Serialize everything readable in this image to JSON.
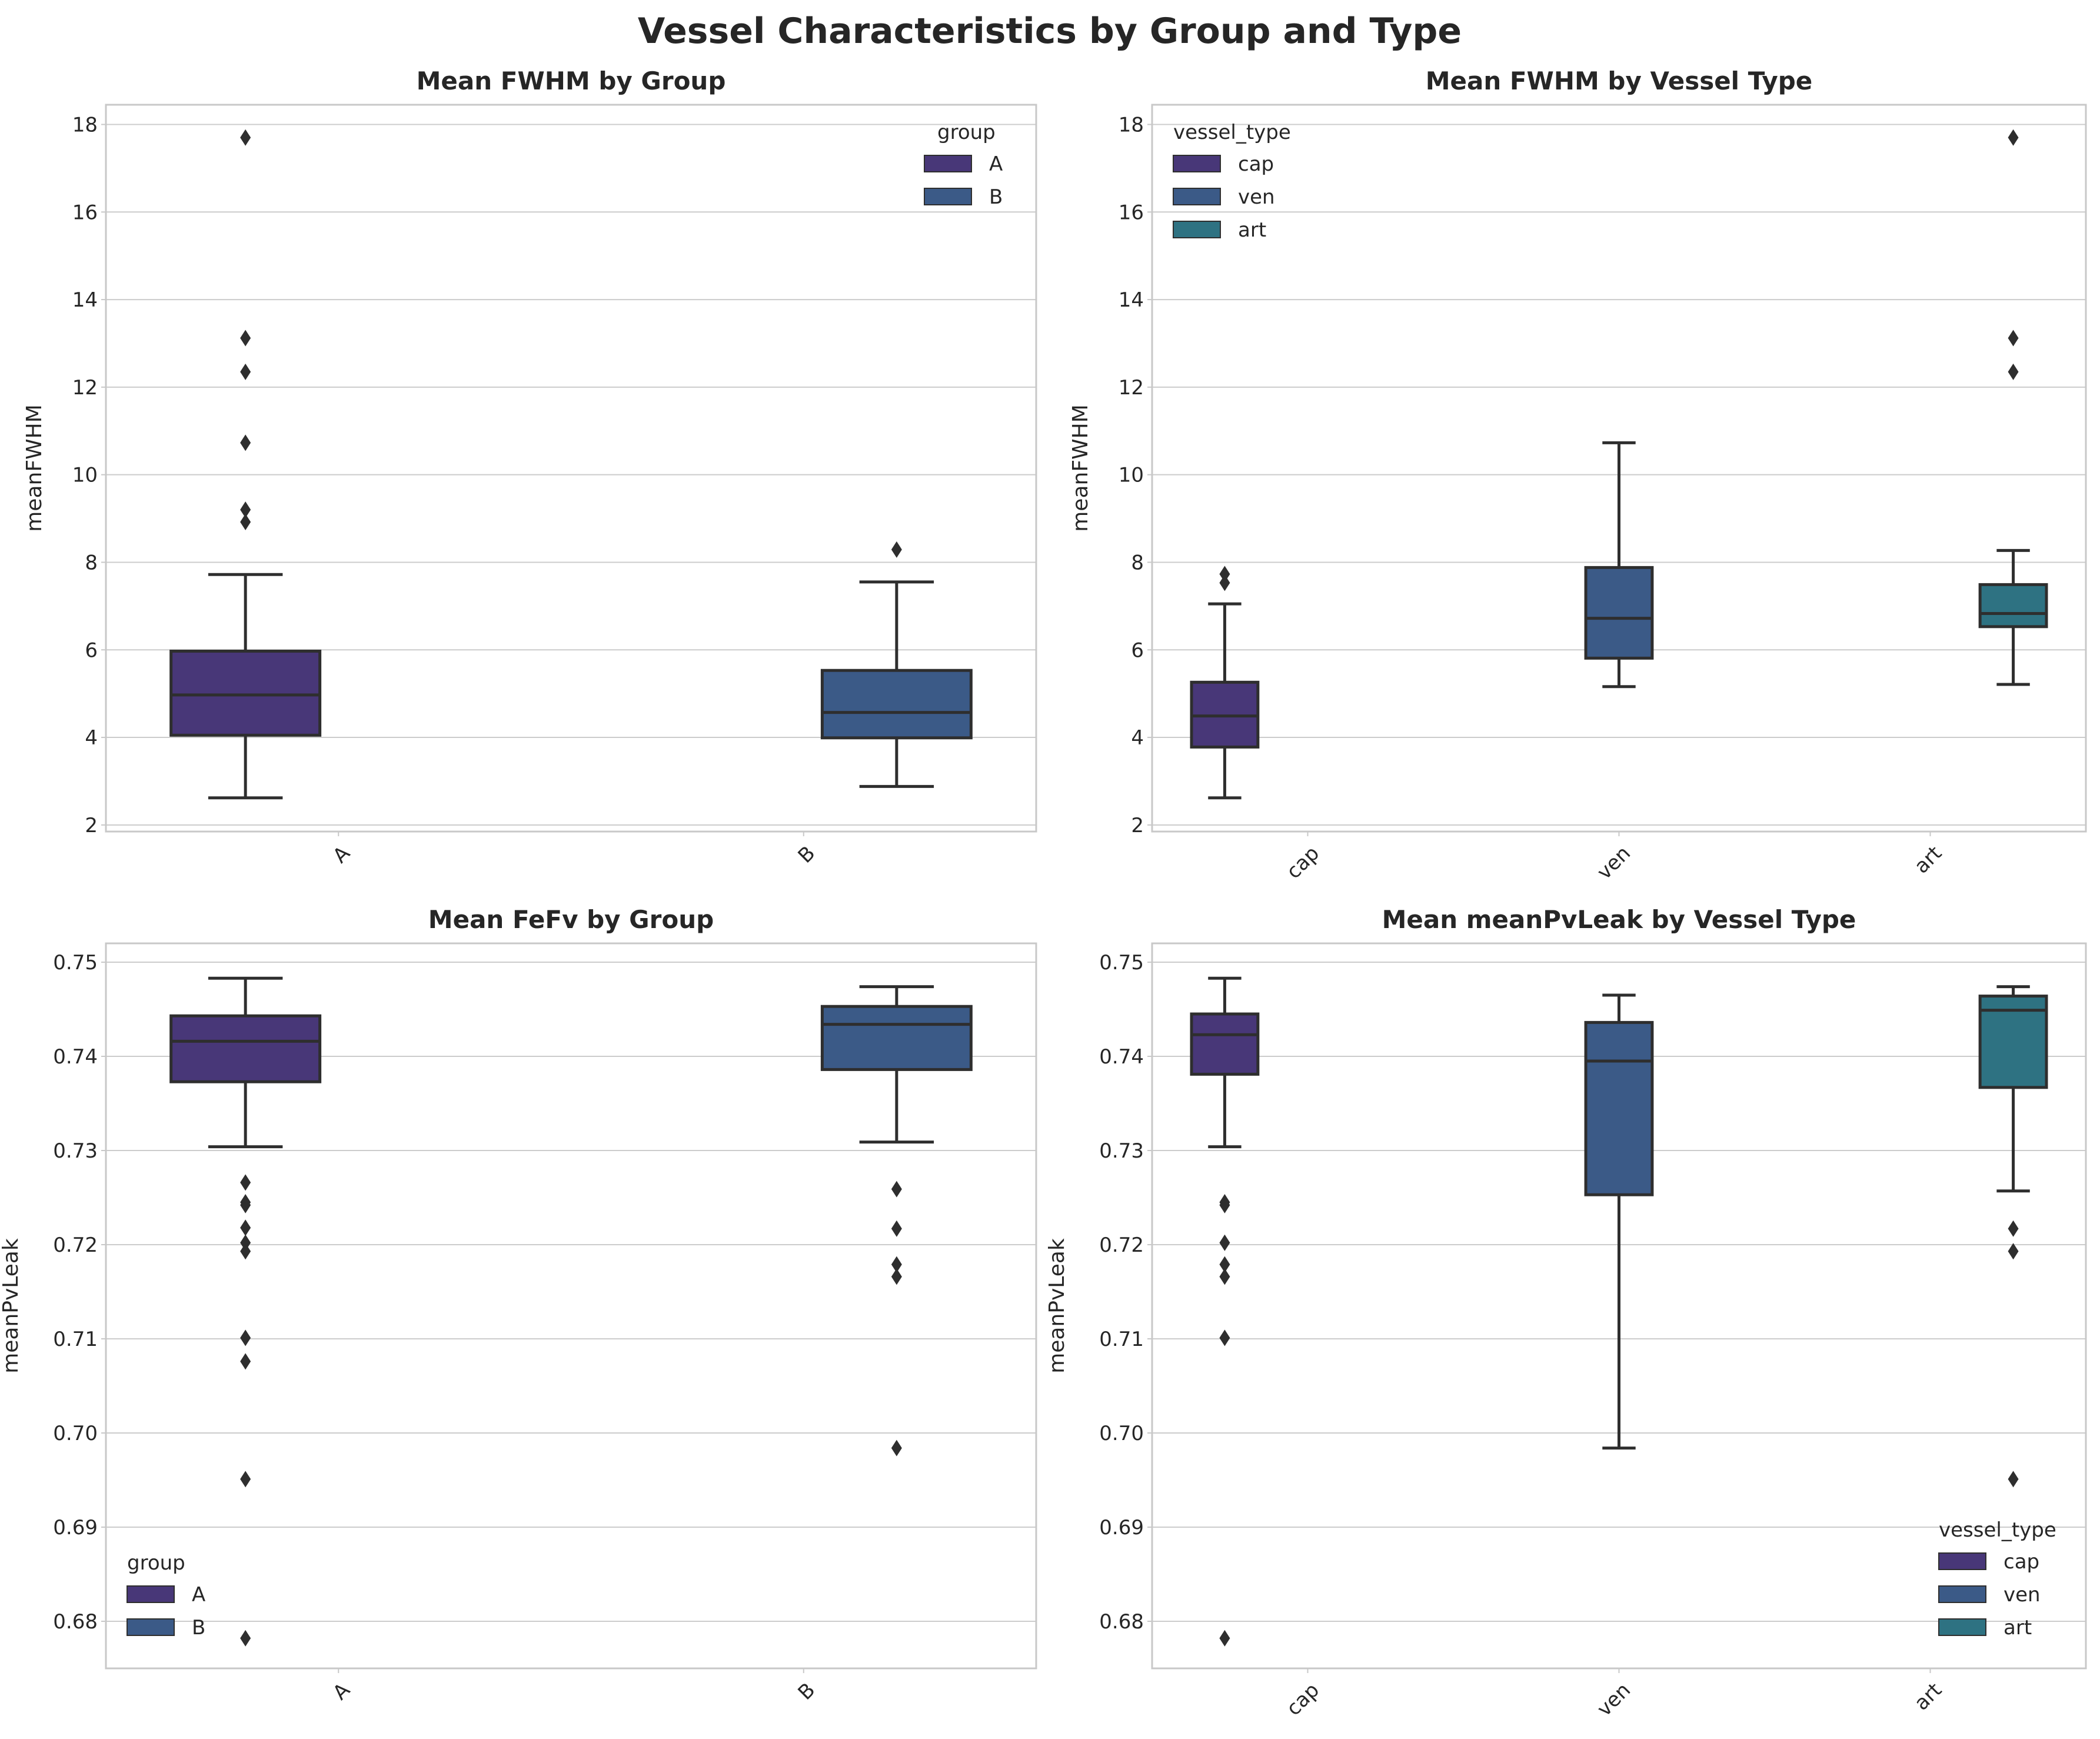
{
  "figure": {
    "title": "Vessel Characteristics by Group and Type"
  },
  "colors": {
    "A": "#483778",
    "B": "#3b5a87",
    "cap": "#483778",
    "ven": "#3b5a87",
    "art": "#2e7282",
    "line": "#2e2e2e",
    "grid": "#cccccc",
    "frame": "#c8c8c8"
  },
  "chart_data": [
    {
      "id": "p0",
      "type": "box",
      "title": "Mean FWHM by Group",
      "xlabel": "",
      "ylabel": "meanFWHM",
      "ylim": [
        1.85,
        18.45
      ],
      "yticks": [
        2,
        4,
        6,
        8,
        10,
        12,
        14,
        16,
        18
      ],
      "ytick_labels": [
        "2",
        "4",
        "6",
        "8",
        "10",
        "12",
        "14",
        "16",
        "18"
      ],
      "categories": [
        "A",
        "B"
      ],
      "grid": true,
      "legend": {
        "title": "group",
        "entries": [
          "A",
          "B"
        ],
        "placement": "upper-right"
      },
      "series": [
        {
          "name": "A",
          "category": "A",
          "slot": 0,
          "q1": 4.05,
          "median": 4.97,
          "q3": 5.97,
          "whisker_low": 2.62,
          "whisker_high": 7.72,
          "outliers": [
            17.7,
            13.12,
            12.35,
            10.73,
            9.2,
            8.92
          ]
        },
        {
          "name": "B",
          "category": "B",
          "slot": 1,
          "q1": 3.99,
          "median": 4.57,
          "q3": 5.53,
          "whisker_low": 2.88,
          "whisker_high": 7.55,
          "outliers": [
            8.29
          ]
        }
      ]
    },
    {
      "id": "p1",
      "type": "box",
      "title": "Mean FWHM by Vessel Type",
      "xlabel": "",
      "ylabel": "meanFWHM",
      "ylim": [
        1.85,
        18.45
      ],
      "yticks": [
        2,
        4,
        6,
        8,
        10,
        12,
        14,
        16,
        18
      ],
      "ytick_labels": [
        "2",
        "4",
        "6",
        "8",
        "10",
        "12",
        "14",
        "16",
        "18"
      ],
      "categories": [
        "cap",
        "ven",
        "art"
      ],
      "grid": true,
      "legend": {
        "title": "vessel_type",
        "entries": [
          "cap",
          "ven",
          "art"
        ],
        "placement": "upper-left"
      },
      "series": [
        {
          "name": "cap",
          "category": "cap",
          "slot": 0,
          "q1": 3.78,
          "median": 4.49,
          "q3": 5.26,
          "whisker_low": 2.62,
          "whisker_high": 7.05,
          "outliers": [
            7.73,
            7.53
          ]
        },
        {
          "name": "ven",
          "category": "ven",
          "slot": 1,
          "q1": 5.81,
          "median": 6.72,
          "q3": 7.88,
          "whisker_low": 5.16,
          "whisker_high": 10.73,
          "outliers": []
        },
        {
          "name": "art",
          "category": "art",
          "slot": 2,
          "q1": 6.53,
          "median": 6.83,
          "q3": 7.49,
          "whisker_low": 5.21,
          "whisker_high": 8.27,
          "outliers": [
            17.7,
            13.12,
            12.35
          ]
        }
      ]
    },
    {
      "id": "p2",
      "type": "box",
      "title": "Mean FeFv by Group",
      "xlabel": "",
      "ylabel": "meanPvLeak",
      "ylim": [
        0.675,
        0.752
      ],
      "yticks": [
        0.68,
        0.69,
        0.7,
        0.71,
        0.72,
        0.73,
        0.74,
        0.75
      ],
      "ytick_labels": [
        "0.68",
        "0.69",
        "0.70",
        "0.71",
        "0.72",
        "0.73",
        "0.74",
        "0.75"
      ],
      "categories": [
        "A",
        "B"
      ],
      "grid": true,
      "legend": {
        "title": "group",
        "entries": [
          "A",
          "B"
        ],
        "placement": "lower-left"
      },
      "series": [
        {
          "name": "A",
          "category": "A",
          "slot": 0,
          "q1": 0.7373,
          "median": 0.7416,
          "q3": 0.7443,
          "whisker_low": 0.7304,
          "whisker_high": 0.7483,
          "outliers": [
            0.7266,
            0.7245,
            0.7242,
            0.7218,
            0.7202,
            0.7193,
            0.7101,
            0.7076,
            0.6951,
            0.6782
          ]
        },
        {
          "name": "B",
          "category": "B",
          "slot": 1,
          "q1": 0.7386,
          "median": 0.7434,
          "q3": 0.7453,
          "whisker_low": 0.7309,
          "whisker_high": 0.7474,
          "outliers": [
            0.7259,
            0.7217,
            0.7179,
            0.7166,
            0.6984
          ]
        }
      ]
    },
    {
      "id": "p3",
      "type": "box",
      "title": "Mean meanPvLeak by Vessel Type",
      "xlabel": "",
      "ylabel": "meanPvLeak",
      "ylim": [
        0.675,
        0.752
      ],
      "yticks": [
        0.68,
        0.69,
        0.7,
        0.71,
        0.72,
        0.73,
        0.74,
        0.75
      ],
      "ytick_labels": [
        "0.68",
        "0.69",
        "0.70",
        "0.71",
        "0.72",
        "0.73",
        "0.74",
        "0.75"
      ],
      "categories": [
        "cap",
        "ven",
        "art"
      ],
      "grid": true,
      "legend": {
        "title": "vessel_type",
        "entries": [
          "cap",
          "ven",
          "art"
        ],
        "placement": "lower-right"
      },
      "series": [
        {
          "name": "cap",
          "category": "cap",
          "slot": 0,
          "q1": 0.7381,
          "median": 0.7423,
          "q3": 0.7445,
          "whisker_low": 0.7304,
          "whisker_high": 0.7483,
          "outliers": [
            0.7245,
            0.7242,
            0.7202,
            0.7179,
            0.7166,
            0.7101,
            0.6782
          ]
        },
        {
          "name": "ven",
          "category": "ven",
          "slot": 1,
          "q1": 0.7253,
          "median": 0.7395,
          "q3": 0.7436,
          "whisker_low": 0.6984,
          "whisker_high": 0.7465,
          "outliers": []
        },
        {
          "name": "art",
          "category": "art",
          "slot": 2,
          "q1": 0.7367,
          "median": 0.7449,
          "q3": 0.7464,
          "whisker_low": 0.7257,
          "whisker_high": 0.7474,
          "outliers": [
            0.7217,
            0.7193,
            0.6951
          ]
        }
      ]
    }
  ]
}
